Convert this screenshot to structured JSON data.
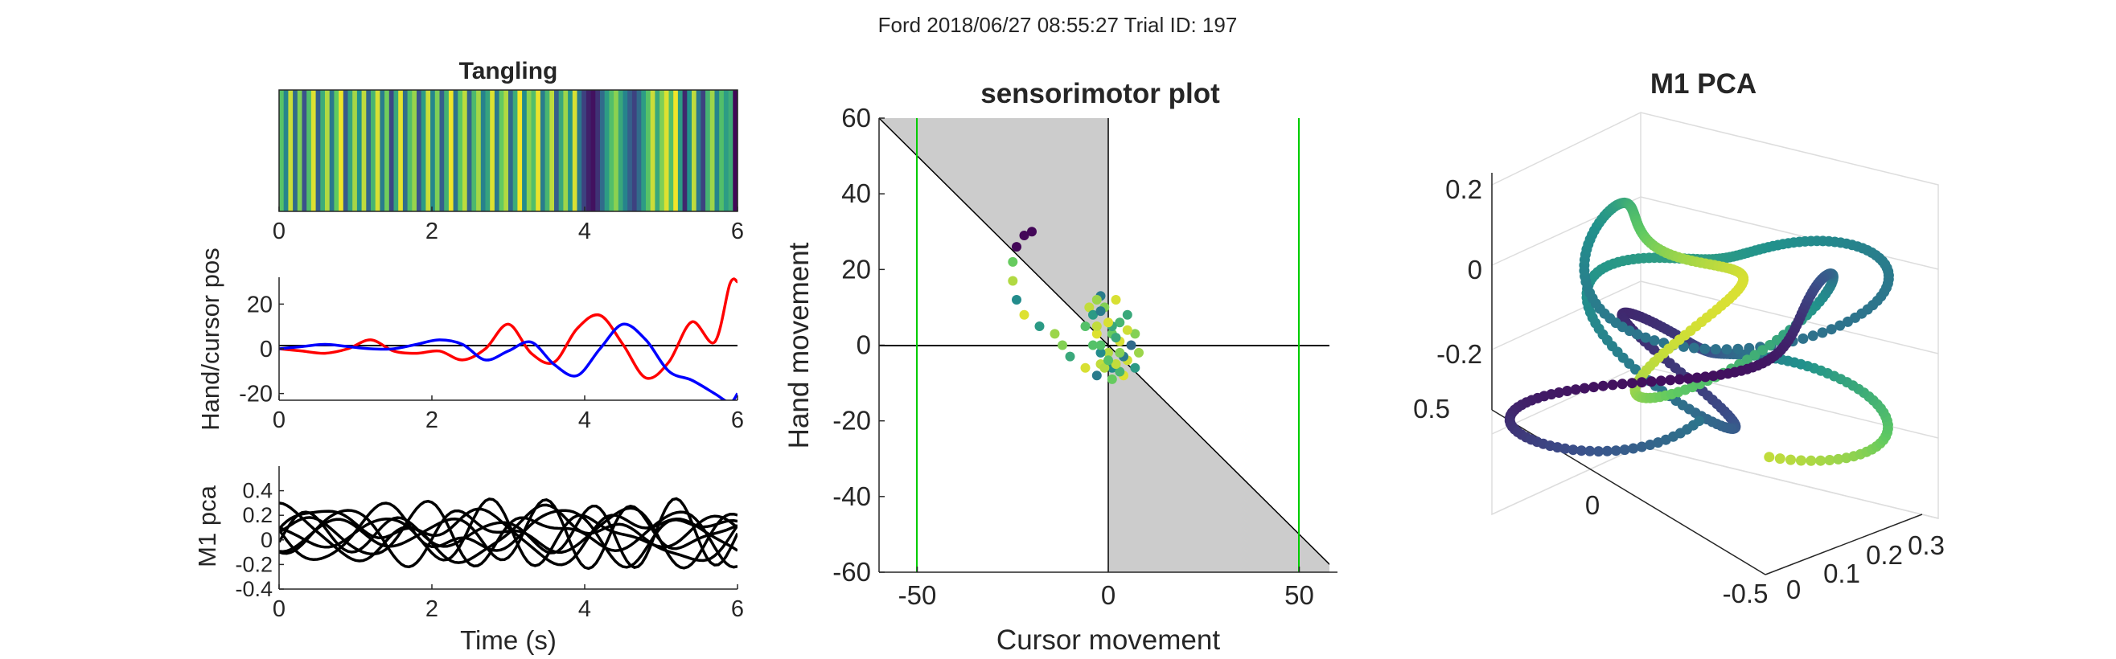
{
  "figure": {
    "suptitle": "Ford 2018/06/27 08:55:27 Trial ID: 197"
  },
  "colors": {
    "red_series": "#ff0000",
    "blue_series": "#0000ff",
    "black_series": "#000000",
    "green_lines": "#00cc00",
    "gray_region": "#cccccc",
    "colormap": [
      "#440154",
      "#3b528b",
      "#21918c",
      "#5ec962",
      "#fde725"
    ]
  },
  "chart_data": [
    {
      "type": "heatmap",
      "title": "Tangling",
      "xlim": [
        0,
        6
      ],
      "xticks": [
        "0",
        "2",
        "4",
        "6"
      ],
      "colormap": "viridis",
      "values": [
        0.72,
        0.45,
        0.92,
        0.35,
        0.8,
        0.25,
        0.7,
        0.95,
        0.3,
        0.62,
        0.88,
        0.4,
        0.75,
        0.98,
        0.28,
        0.58,
        0.86,
        0.5,
        0.9,
        0.33,
        0.66,
        0.94,
        0.42,
        0.78,
        0.22,
        0.6,
        0.96,
        0.36,
        0.7,
        0.84,
        0.26,
        0.55,
        0.92,
        0.46,
        0.8,
        0.3,
        0.64,
        0.98,
        0.38,
        0.74,
        0.9,
        0.32,
        0.68,
        0.86,
        0.44,
        0.58,
        0.95,
        0.4,
        0.76,
        0.88,
        0.34,
        0.62,
        0.99,
        0.48,
        0.82,
        0.7,
        0.97,
        0.42,
        0.66,
        0.9,
        0.3,
        0.6,
        0.85,
        0.52,
        0.94,
        0.4,
        0.2,
        0.1,
        0.05,
        0.15,
        0.35,
        0.55,
        0.7,
        0.82,
        0.6,
        0.45,
        0.3,
        0.2,
        0.35,
        0.55,
        0.72,
        0.92,
        0.6,
        0.8,
        0.95,
        0.7,
        0.98,
        0.55,
        0.12,
        0.5,
        0.9,
        0.4,
        0.2,
        0.65,
        0.85,
        0.45,
        0.7,
        0.55,
        0.62,
        0.02
      ]
    },
    {
      "type": "line",
      "ylabel": "Hand/cursor pos",
      "xlim": [
        0,
        6
      ],
      "ylim": [
        -23,
        32
      ],
      "xticks": [
        "0",
        "2",
        "4",
        "6"
      ],
      "yticks": [
        "-20",
        "0",
        "20"
      ],
      "x": [
        0,
        0.3,
        0.6,
        0.9,
        1.2,
        1.5,
        1.8,
        2.1,
        2.4,
        2.7,
        3.0,
        3.3,
        3.6,
        3.9,
        4.2,
        4.5,
        4.8,
        5.1,
        5.4,
        5.7,
        5.9,
        6.0
      ],
      "series": [
        {
          "color": "red",
          "values": [
            0,
            -1,
            -2,
            0,
            4,
            -1,
            -2,
            -1,
            -5,
            0,
            11,
            -2,
            -6,
            9,
            15,
            2,
            -13,
            -6,
            12,
            3,
            29,
            30
          ]
        },
        {
          "color": "blue",
          "values": [
            0,
            1,
            2,
            1,
            0,
            0,
            2,
            4,
            2,
            -5,
            -1,
            3,
            -7,
            -12,
            0,
            11,
            4,
            -10,
            -14,
            -20,
            -24,
            -20
          ]
        }
      ]
    },
    {
      "type": "line",
      "ylabel": "M1 pca",
      "xlabel": "Time (s)",
      "xlim": [
        0,
        6
      ],
      "ylim": [
        -0.4,
        0.6
      ],
      "xticks": [
        "0",
        "2",
        "4",
        "6"
      ],
      "yticks": [
        "0.4",
        "0.2",
        "0",
        "-0.2",
        "-0.4"
      ],
      "series_count": 8
    },
    {
      "type": "scatter",
      "title": "sensorimotor plot",
      "xlabel": "Cursor movement",
      "ylabel": "Hand movement",
      "xlim": [
        -60,
        60
      ],
      "ylim": [
        -60,
        60
      ],
      "xticks": [
        "-50",
        "0",
        "50"
      ],
      "yticks": [
        "60",
        "40",
        "20",
        "0",
        "-20",
        "-40",
        "-60"
      ],
      "vertical_lines": [
        -50,
        50
      ],
      "diagonal": [
        [
          -60,
          60
        ],
        [
          60,
          -60
        ]
      ],
      "points": [
        [
          -20,
          30
        ],
        [
          -22,
          29
        ],
        [
          -24,
          26
        ],
        [
          -25,
          22
        ],
        [
          -25,
          17
        ],
        [
          -24,
          12
        ],
        [
          -22,
          8
        ],
        [
          -18,
          5
        ],
        [
          -14,
          3
        ],
        [
          -12,
          0
        ],
        [
          -10,
          -3
        ],
        [
          -6,
          -6
        ],
        [
          -3,
          -8
        ],
        [
          -2,
          -5
        ],
        [
          -4,
          0
        ],
        [
          -6,
          5
        ],
        [
          -5,
          10
        ],
        [
          -2,
          13
        ],
        [
          2,
          12
        ],
        [
          5,
          8
        ],
        [
          7,
          3
        ],
        [
          8,
          -2
        ],
        [
          7,
          -6
        ],
        [
          4,
          -8
        ],
        [
          1,
          -6
        ],
        [
          0,
          -2
        ],
        [
          1,
          3
        ],
        [
          3,
          6
        ],
        [
          5,
          4
        ],
        [
          6,
          0
        ],
        [
          5,
          -4
        ],
        [
          3,
          -7
        ],
        [
          1,
          -9
        ],
        [
          -1,
          -6
        ],
        [
          -2,
          -2
        ],
        [
          -3,
          3
        ],
        [
          -4,
          8
        ],
        [
          -3,
          12
        ],
        [
          -1,
          10
        ],
        [
          1,
          5
        ],
        [
          3,
          1
        ],
        [
          4,
          -3
        ],
        [
          2,
          -5
        ],
        [
          0,
          -4
        ],
        [
          -2,
          0
        ],
        [
          -3,
          5
        ],
        [
          -2,
          9
        ],
        [
          0,
          6
        ],
        [
          2,
          2
        ],
        [
          3,
          -2
        ]
      ]
    },
    {
      "type": "scatter",
      "title": "M1 PCA",
      "zticks": [
        "0.2",
        "0",
        "-0.2"
      ],
      "yticks": [
        "0.5",
        "0",
        "-0.5"
      ],
      "xticks": [
        "0",
        "0.1",
        "0.2",
        "0.3"
      ]
    }
  ]
}
